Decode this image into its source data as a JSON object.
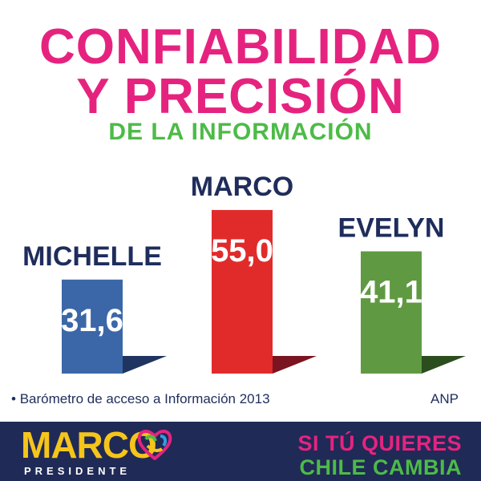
{
  "header": {
    "title_line1": "CONFIABILIDAD",
    "title_line2": "Y PRECISIÓN",
    "subtitle": "DE LA INFORMACIÓN"
  },
  "chart_data": {
    "type": "bar",
    "categories": [
      "MICHELLE",
      "MARCO",
      "EVELYN"
    ],
    "values": [
      31.6,
      55.0,
      41.1
    ],
    "value_labels": [
      "31,6",
      "55,0",
      "41,1"
    ],
    "colors": [
      "#3b67a8",
      "#e12b2b",
      "#5f9a42"
    ],
    "shadow_colors": [
      "#1f3460",
      "#7a1420",
      "#2c4d1e"
    ],
    "grid": false,
    "legend": "none"
  },
  "source": {
    "bullet": "•",
    "text": "Barómetro de acceso a Información 2013",
    "org": "ANP"
  },
  "footer": {
    "logo_name": "MARCO",
    "logo_sub": "PRESIDENTE",
    "slogan_line1": "SI TÚ QUIERES",
    "slogan_line2": "CHILE CAMBIA",
    "bg_color": "#202a57"
  }
}
